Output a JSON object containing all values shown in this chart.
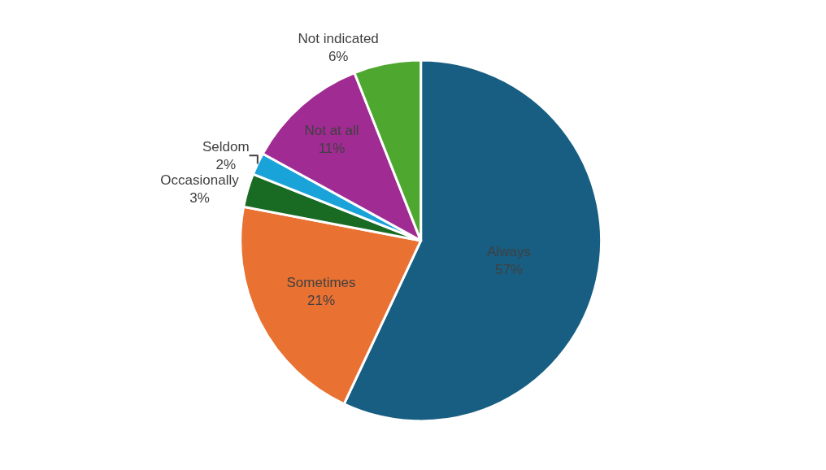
{
  "chart_data": {
    "type": "pie",
    "categories": [
      "Always",
      "Sometimes",
      "Occasionally",
      "Seldom",
      "Not at all",
      "Not indicated"
    ],
    "values": [
      57,
      21,
      3,
      2,
      11,
      6
    ],
    "value_labels": [
      "57%",
      "21%",
      "3%",
      "2%",
      "11%",
      "6%"
    ],
    "colors": [
      "#175e82",
      "#e97132",
      "#196b24",
      "#1aa3d9",
      "#a02b93",
      "#4ea72e"
    ],
    "legend": false
  }
}
